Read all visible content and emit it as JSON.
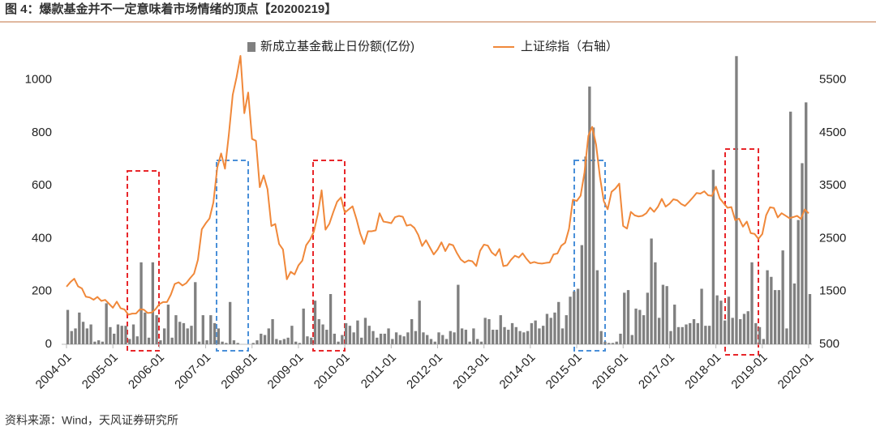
{
  "chart_data": {
    "type": "bar_line",
    "title": "图 4：爆款基金并不一定意味着市场情绪的顶点【20200219】",
    "source": "资料来源：Wind，天风证券研究所",
    "categories": [
      "2004-01",
      null,
      null,
      null,
      null,
      null,
      null,
      null,
      null,
      null,
      null,
      null,
      "2005-01",
      null,
      null,
      null,
      null,
      null,
      null,
      null,
      null,
      null,
      null,
      null,
      "2006-01",
      null,
      null,
      null,
      null,
      null,
      null,
      null,
      null,
      null,
      null,
      null,
      "2007-01",
      null,
      null,
      null,
      null,
      null,
      null,
      null,
      null,
      null,
      null,
      null,
      "2008-01",
      null,
      null,
      null,
      null,
      null,
      null,
      null,
      null,
      null,
      null,
      null,
      "2009-01",
      null,
      null,
      null,
      null,
      null,
      null,
      null,
      null,
      null,
      null,
      null,
      "2010-01",
      null,
      null,
      null,
      null,
      null,
      null,
      null,
      null,
      null,
      null,
      null,
      "2011-01",
      null,
      null,
      null,
      null,
      null,
      null,
      null,
      null,
      null,
      null,
      null,
      "2012-01",
      null,
      null,
      null,
      null,
      null,
      null,
      null,
      null,
      null,
      null,
      null,
      "2013-01",
      null,
      null,
      null,
      null,
      null,
      null,
      null,
      null,
      null,
      null,
      null,
      "2014-01",
      null,
      null,
      null,
      null,
      null,
      null,
      null,
      null,
      null,
      null,
      null,
      "2015-01",
      null,
      null,
      null,
      null,
      null,
      null,
      null,
      null,
      null,
      null,
      null,
      "2016-01",
      null,
      null,
      null,
      null,
      null,
      null,
      null,
      null,
      null,
      null,
      null,
      "2017-01",
      null,
      null,
      null,
      null,
      null,
      null,
      null,
      null,
      null,
      null,
      null,
      "2018-01",
      null,
      null,
      null,
      null,
      null,
      null,
      null,
      null,
      null,
      null,
      null,
      "2019-01",
      null,
      null,
      null,
      null,
      null,
      null,
      null,
      null,
      null,
      null,
      null,
      "2020-01"
    ],
    "series": [
      {
        "name": "新成立基金截止日份额(亿份)",
        "type": "bar",
        "color": "#808080",
        "values": [
          130,
          50,
          60,
          120,
          85,
          60,
          75,
          10,
          15,
          10,
          155,
          65,
          40,
          75,
          70,
          70,
          20,
          75,
          30,
          310,
          120,
          25,
          310,
          110,
          15,
          60,
          150,
          25,
          110,
          85,
          80,
          60,
          70,
          235,
          10,
          110,
          15,
          110,
          80,
          60,
          10,
          5,
          160,
          15,
          5,
          0,
          0,
          0,
          5,
          15,
          40,
          35,
          60,
          95,
          20,
          15,
          20,
          25,
          70,
          10,
          5,
          135,
          30,
          25,
          165,
          95,
          75,
          55,
          190,
          40,
          10,
          35,
          80,
          70,
          45,
          90,
          25,
          100,
          70,
          50,
          25,
          40,
          40,
          60,
          20,
          45,
          35,
          30,
          45,
          95,
          50,
          165,
          45,
          35,
          20,
          10,
          45,
          35,
          20,
          50,
          45,
          225,
          60,
          55,
          10,
          60,
          20,
          10,
          100,
          95,
          55,
          55,
          110,
          65,
          55,
          80,
          65,
          50,
          45,
          50,
          80,
          90,
          60,
          70,
          115,
          100,
          120,
          160,
          60,
          110,
          180,
          200,
          210,
          375,
          710,
          975,
          820,
          280,
          50,
          10,
          5,
          5,
          10,
          40,
          195,
          205,
          35,
          135,
          130,
          110,
          195,
          400,
          310,
          100,
          225,
          220,
          50,
          150,
          65,
          65,
          75,
          80,
          95,
          80,
          210,
          70,
          70,
          660,
          185,
          165,
          90,
          180,
          100,
          1090,
          95,
          115,
          125,
          310,
          80,
          65,
          20,
          280,
          255,
          205,
          205,
          355,
          60,
          880,
          230,
          470,
          685,
          915,
          190
        ]
      },
      {
        "name": "上证综指（右轴）",
        "type": "line",
        "axis": "y2",
        "color": "#f0883a",
        "values": [
          1590,
          1675,
          1740,
          1595,
          1555,
          1400,
          1386,
          1342,
          1396,
          1320,
          1340,
          1266,
          1191,
          1306,
          1181,
          1159,
          1060,
          1080,
          1083,
          1162,
          1155,
          1092,
          1099,
          1161,
          1258,
          1299,
          1299,
          1440,
          1641,
          1672,
          1612,
          1658,
          1752,
          1837,
          2099,
          2675,
          2786,
          2881,
          3183,
          3841,
          4109,
          3820,
          4471,
          5218,
          5552,
          5954,
          4871,
          5261,
          4383,
          4348,
          3472,
          3693,
          3433,
          2736,
          2775,
          2397,
          2293,
          1729,
          1871,
          1821,
          1991,
          2082,
          2373,
          2477,
          2632,
          2959,
          3412,
          2667,
          2779,
          2996,
          3195,
          3277,
          2989,
          3051,
          3109,
          2870,
          2592,
          2398,
          2638,
          2638,
          2655,
          2978,
          2820,
          2808,
          2790,
          2905,
          2928,
          2911,
          2743,
          2762,
          2701,
          2567,
          2359,
          2468,
          2333,
          2199,
          2292,
          2428,
          2263,
          2396,
          2373,
          2225,
          2103,
          2047,
          2086,
          2069,
          1980,
          2269,
          2385,
          2366,
          2237,
          2178,
          2301,
          1979,
          1994,
          2098,
          2175,
          2141,
          2220,
          2116,
          2033,
          2056,
          2033,
          2026,
          2039,
          2048,
          2201,
          2217,
          2364,
          2420,
          2683,
          3235,
          3210,
          3310,
          3748,
          4441,
          4612,
          4277,
          3664,
          3206,
          3053,
          3383,
          3445,
          3539,
          2738,
          2688,
          3004,
          2938,
          2917,
          2930,
          2979,
          3085,
          3005,
          3100,
          3250,
          3104,
          3159,
          3242,
          3223,
          3155,
          3117,
          3192,
          3273,
          3361,
          3349,
          3393,
          3317,
          3307,
          3481,
          3259,
          3169,
          3082,
          3095,
          2847,
          2876,
          2725,
          2821,
          2603,
          2588,
          2494,
          2585,
          2941,
          3091,
          3078,
          2899,
          2979,
          2933,
          2886,
          2905,
          2929,
          2872,
          3050,
          2977
        ]
      }
    ],
    "ylim": [
      0,
      1100
    ],
    "yticks": [
      0,
      200,
      400,
      600,
      800,
      1000
    ],
    "y2lim": [
      500,
      6000
    ],
    "y2ticks": [
      500,
      1500,
      2500,
      3500,
      4500,
      5500
    ],
    "legend": "top"
  }
}
